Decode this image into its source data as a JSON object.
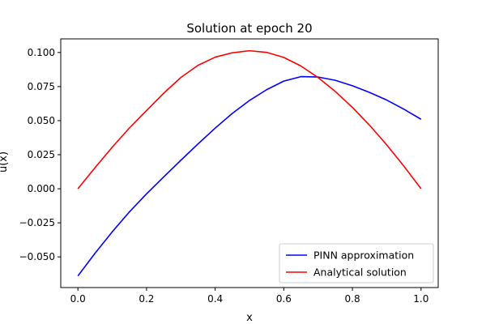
{
  "chart_data": {
    "type": "line",
    "title": "Solution at epoch 20",
    "xlabel": "x",
    "ylabel": "u(x)",
    "xlim": [
      -0.05,
      1.05
    ],
    "ylim": [
      -0.0725,
      0.11
    ],
    "xticks": [
      0.0,
      0.2,
      0.4,
      0.6,
      0.8,
      1.0
    ],
    "xtick_labels": [
      "0.0",
      "0.2",
      "0.4",
      "0.6",
      "0.8",
      "1.0"
    ],
    "yticks": [
      -0.05,
      -0.025,
      0.0,
      0.025,
      0.05,
      0.075,
      0.1
    ],
    "ytick_labels": [
      "−0.050",
      "−0.025",
      "0.000",
      "0.025",
      "0.050",
      "0.075",
      "0.100"
    ],
    "grid": false,
    "legend_position": "lower-right",
    "x": [
      0.0,
      0.05,
      0.1,
      0.15,
      0.2,
      0.25,
      0.3,
      0.35,
      0.4,
      0.45,
      0.5,
      0.55,
      0.6,
      0.65,
      0.7,
      0.75,
      0.8,
      0.85,
      0.9,
      0.95,
      1.0
    ],
    "series": [
      {
        "name": "PINN approximation",
        "color": "#0000ff",
        "values": [
          -0.064,
          -0.0473,
          -0.0316,
          -0.017,
          -0.0037,
          0.0087,
          0.0209,
          0.0329,
          0.0445,
          0.0553,
          0.0648,
          0.0727,
          0.079,
          0.0823,
          0.082,
          0.0796,
          0.0756,
          0.0707,
          0.0651,
          0.0584,
          0.051
        ]
      },
      {
        "name": "Analytical solution",
        "color": "#ff0000",
        "values": [
          0.0,
          0.0155,
          0.0305,
          0.0446,
          0.0574,
          0.0701,
          0.0817,
          0.0906,
          0.0966,
          0.0998,
          0.1013,
          0.1001,
          0.0964,
          0.0901,
          0.0816,
          0.0714,
          0.0597,
          0.0466,
          0.0322,
          0.0166,
          0.0
        ]
      }
    ]
  }
}
